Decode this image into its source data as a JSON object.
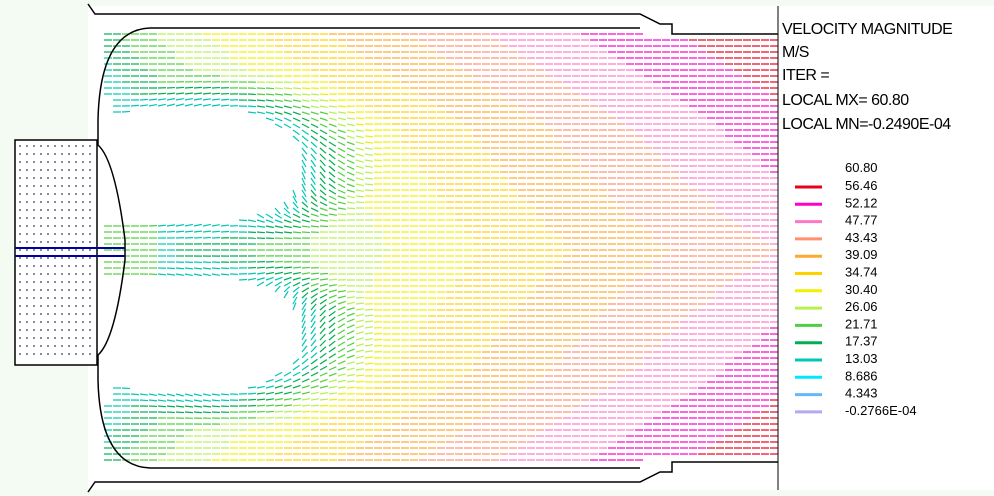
{
  "legend": {
    "title": "VELOCITY MAGNITUDE",
    "unit": "M/S",
    "iter": "ITER =",
    "local_max": "LOCAL MX=  60.80",
    "local_min": "LOCAL MN=-0.2490E-04",
    "max_label": "60.80",
    "levels": [
      {
        "label": "56.46",
        "color": "#e8001c"
      },
      {
        "label": "52.12",
        "color": "#ff00c8"
      },
      {
        "label": "47.77",
        "color": "#ff78c8"
      },
      {
        "label": "43.43",
        "color": "#ff9070"
      },
      {
        "label": "39.09",
        "color": "#ffa830"
      },
      {
        "label": "34.74",
        "color": "#ffd000"
      },
      {
        "label": "30.40",
        "color": "#f0f000"
      },
      {
        "label": "26.06",
        "color": "#b8f050"
      },
      {
        "label": "21.71",
        "color": "#50d040"
      },
      {
        "label": "17.37",
        "color": "#00b050"
      },
      {
        "label": "13.03",
        "color": "#00c8b4"
      },
      {
        "label": "8.686",
        "color": "#00e8ff"
      },
      {
        "label": "4.343",
        "color": "#60b8ff"
      },
      {
        "label": "-0.2766E-04",
        "color": "#b8a8f0"
      }
    ]
  }
}
